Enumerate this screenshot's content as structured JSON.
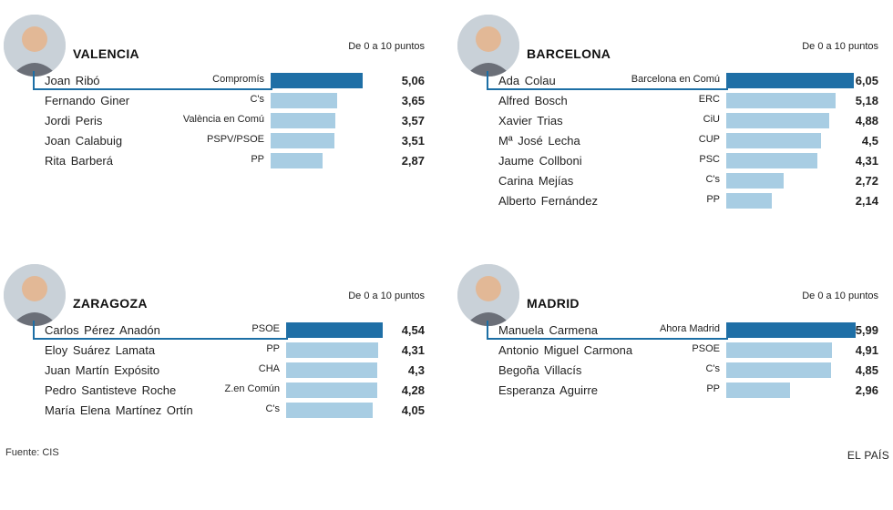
{
  "footer": {
    "source": "Fuente: CIS",
    "brand": "EL PAÍS"
  },
  "colors": {
    "highlight": "#1f6fa6",
    "bar": "#a8cde3",
    "connector": "#1d6fa5"
  },
  "chart_data": [
    {
      "type": "bar",
      "title": "VALENCIA",
      "subtitle": "De 0 a 10 puntos",
      "categories": [
        "Joan Ribó",
        "Fernando Giner",
        "Jordi Peris",
        "Joan Calabuig",
        "Rita Barberá"
      ],
      "parties": [
        "Compromís",
        "C's",
        "València en Comú",
        "PSPV/PSOE",
        "PP"
      ],
      "values": [
        5.06,
        3.65,
        3.57,
        3.51,
        2.87
      ],
      "labels": [
        "5,06",
        "3,65",
        "3,57",
        "3,51",
        "2,87"
      ],
      "xlim": [
        0,
        6.05
      ]
    },
    {
      "type": "bar",
      "title": "BARCELONA",
      "subtitle": "De 0 a 10 puntos",
      "categories": [
        "Ada Colau",
        "Alfred Bosch",
        "Xavier Trias",
        "Mª José Lecha",
        "Jaume Collboni",
        "Carina Mejías",
        "Alberto Fernández"
      ],
      "parties": [
        "Barcelona en Comú",
        "ERC",
        "CiU",
        "CUP",
        "PSC",
        "C's",
        "PP"
      ],
      "values": [
        6.05,
        5.18,
        4.88,
        4.5,
        4.31,
        2.72,
        2.14
      ],
      "labels": [
        "6,05",
        "5,18",
        "4,88",
        "4,5",
        "4,31",
        "2,72",
        "2,14"
      ],
      "xlim": [
        0,
        6.05
      ]
    },
    {
      "type": "bar",
      "title": "ZARAGOZA",
      "subtitle": "De 0 a 10 puntos",
      "categories": [
        "Carlos Pérez Anadón",
        "Eloy Suárez Lamata",
        "Juan Martín Expósito",
        "Pedro Santisteve Roche",
        "María Elena Martínez Ortín"
      ],
      "parties": [
        "PSOE",
        "PP",
        "CHA",
        "Z.en Común",
        "C's"
      ],
      "values": [
        4.54,
        4.31,
        4.3,
        4.28,
        4.05
      ],
      "labels": [
        "4,54",
        "4,31",
        "4,3",
        "4,28",
        "4,05"
      ],
      "xlim": [
        0,
        4.54
      ]
    },
    {
      "type": "bar",
      "title": "MADRID",
      "subtitle": "De 0 a 10 puntos",
      "categories": [
        "Manuela Carmena",
        "Antonio Miguel Carmona",
        "Begoña Villacís",
        "Esperanza Aguirre"
      ],
      "parties": [
        "Ahora Madrid",
        "PSOE",
        "C's",
        "PP"
      ],
      "values": [
        5.99,
        4.91,
        4.85,
        2.96
      ],
      "labels": [
        "5,99",
        "4,91",
        "4,85",
        "2,96"
      ],
      "xlim": [
        0,
        5.99
      ]
    }
  ]
}
